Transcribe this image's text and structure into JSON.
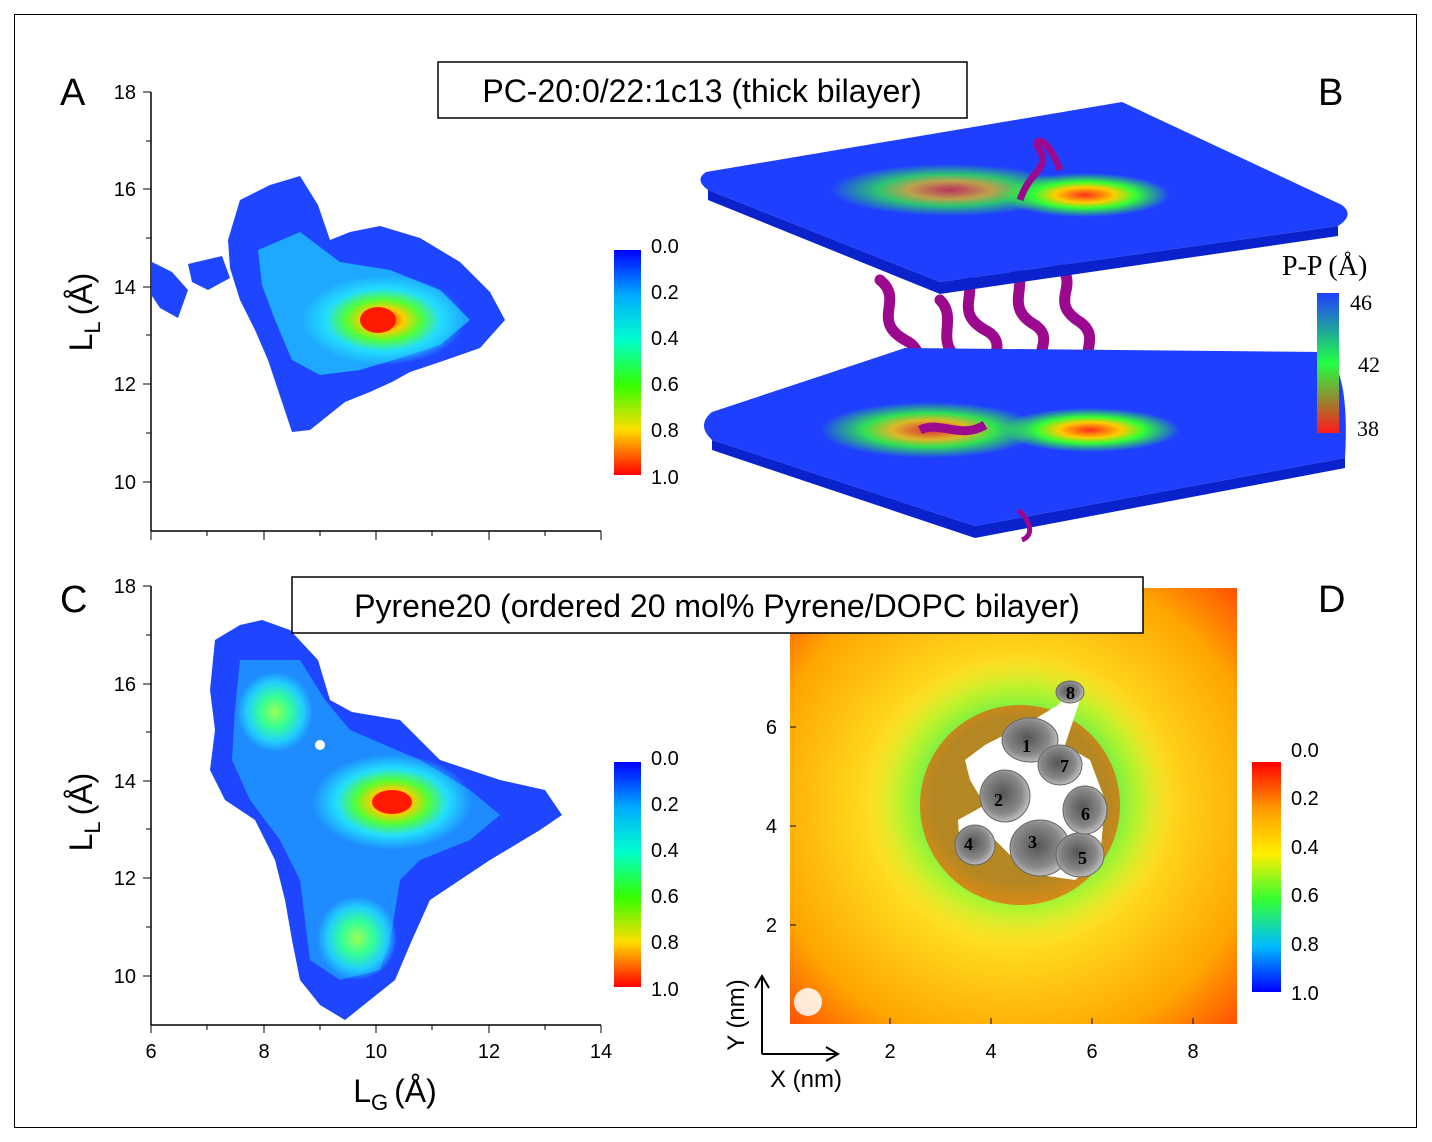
{
  "panels": {
    "A": {
      "label": "A"
    },
    "B": {
      "label": "B",
      "scale_title": "P-P (Å)",
      "scale_ticks": [
        "46",
        "42",
        "38"
      ]
    },
    "C": {
      "label": "C"
    },
    "D": {
      "label": "D",
      "x_arrow_label": "X (nm)",
      "y_arrow_label": "Y (nm)",
      "sites": [
        "1",
        "2",
        "3",
        "4",
        "5",
        "6",
        "7",
        "8"
      ]
    }
  },
  "title_top": "PC-20:0/22:1c13 (thick bilayer)",
  "title_bottom": "Pyrene20 (ordered 20 mol% Pyrene/DOPC bilayer)",
  "colorbar_ticks": [
    "0.0",
    "0.2",
    "0.4",
    "0.6",
    "0.8",
    "1.0"
  ],
  "axes": {
    "ylabel_main": "L",
    "ylabel_sub": "L",
    "ylabel_unit": "(Å)",
    "xlabel_main": "L",
    "xlabel_sub": "G",
    "xlabel_unit": "(Å)",
    "y_ticks": [
      "18",
      "16",
      "14",
      "12",
      "10"
    ],
    "x_ticks": [
      "6",
      "8",
      "10",
      "12",
      "14"
    ],
    "d_x_ticks": [
      "2",
      "4",
      "6",
      "8"
    ],
    "d_y_ticks": [
      "6",
      "4",
      "2"
    ]
  },
  "chart_data": [
    {
      "type": "heatmap",
      "panel": "A",
      "xlabel": "LG (Å)",
      "ylabel": "LL (Å)",
      "xlim": [
        6,
        14
      ],
      "ylim": [
        9,
        18
      ],
      "peaks": [
        {
          "x": 10.1,
          "y": 13.3,
          "value": 1.0
        }
      ],
      "colorbar": {
        "range": [
          0.0,
          1.0
        ],
        "colors": [
          "#0000ff",
          "#00ffff",
          "#00ff00",
          "#ffff00",
          "#ff0000"
        ]
      }
    },
    {
      "type": "heatmap",
      "panel": "C",
      "xlabel": "LG (Å)",
      "ylabel": "LL (Å)",
      "xlim": [
        6,
        14
      ],
      "ylim": [
        9,
        18
      ],
      "peaks": [
        {
          "x": 10.3,
          "y": 13.5,
          "value": 1.0
        },
        {
          "x": 8.2,
          "y": 15.4,
          "value": 0.45
        },
        {
          "x": 9.6,
          "y": 10.7,
          "value": 0.5
        }
      ],
      "colorbar": {
        "range": [
          0.0,
          1.0
        ],
        "colors": [
          "#0000ff",
          "#00ffff",
          "#00ff00",
          "#ffff00",
          "#ff0000"
        ]
      }
    },
    {
      "type": "heatmap",
      "panel": "D",
      "xlabel": "X (nm)",
      "ylabel": "Y (nm)",
      "xlim": [
        0,
        9
      ],
      "ylim": [
        0,
        8
      ],
      "colorbar": {
        "range": [
          0.0,
          1.0
        ],
        "colors": [
          "#ff0000",
          "#ffff00",
          "#00ff00",
          "#00ffff",
          "#0000ff"
        ]
      }
    }
  ],
  "colors": {
    "protein": "#9b0a8e",
    "membrane": "#1f3fff"
  }
}
